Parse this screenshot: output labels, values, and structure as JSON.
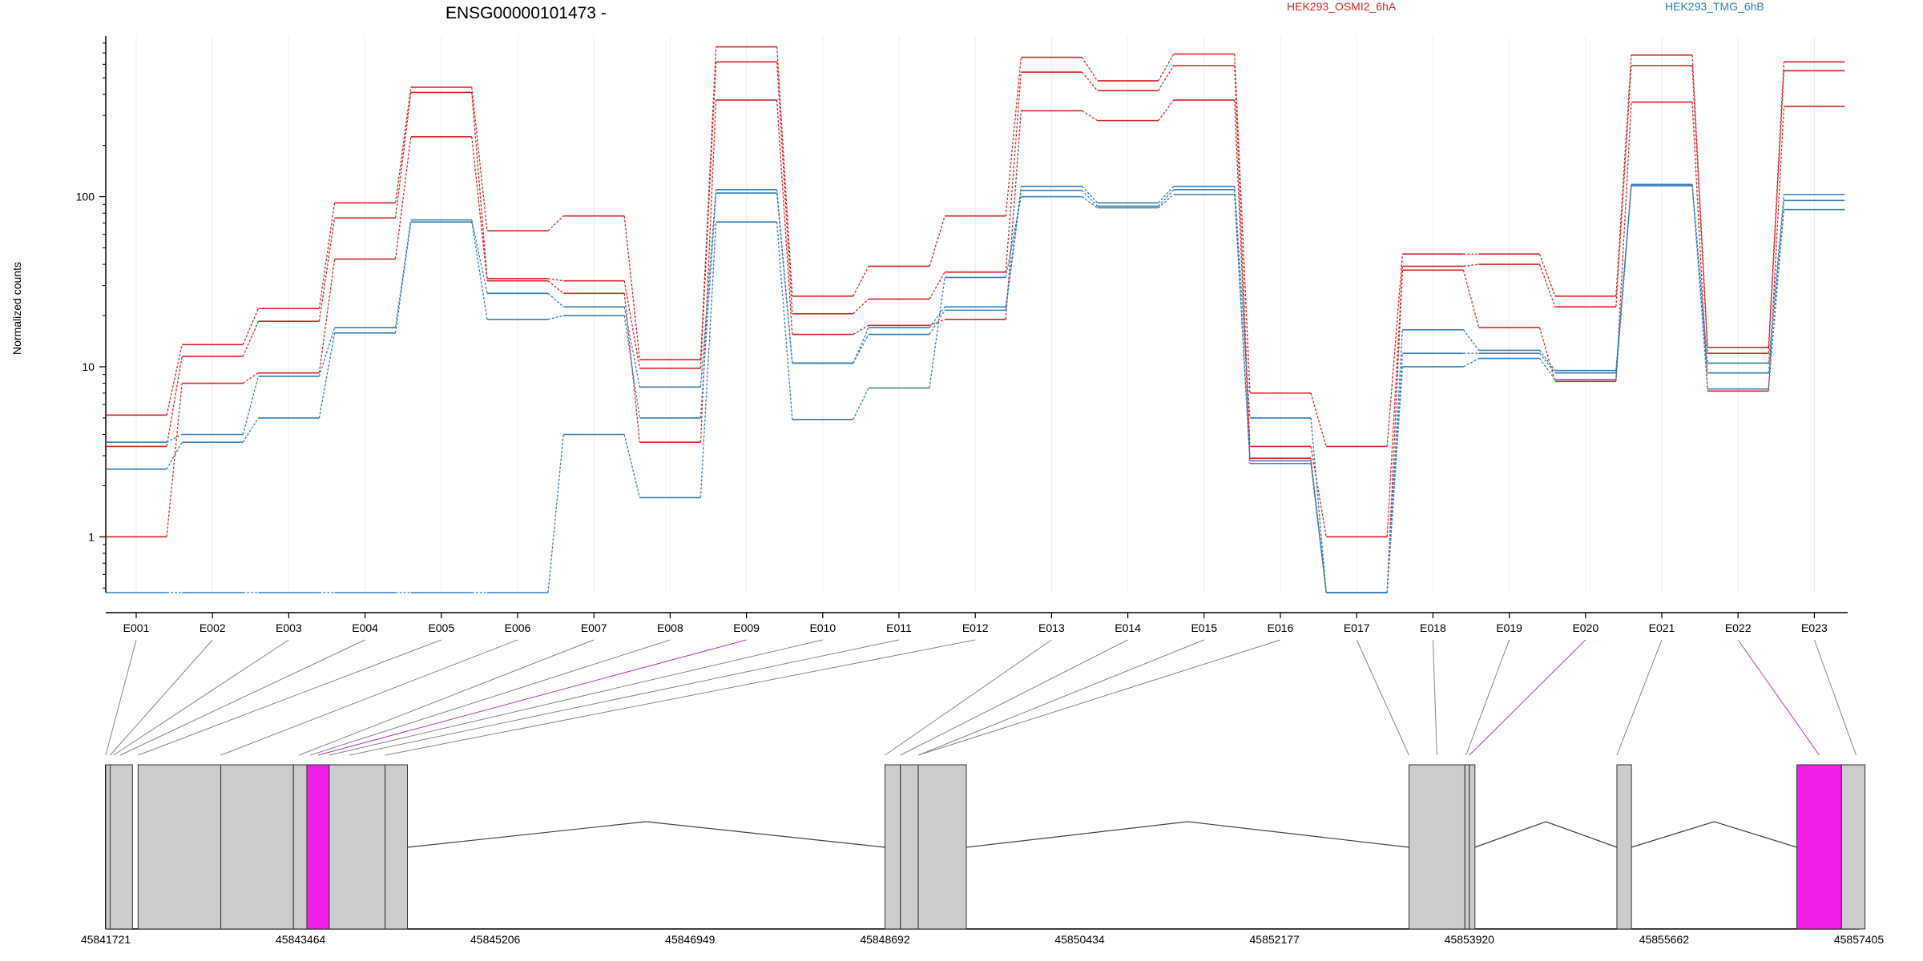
{
  "chart_data": {
    "type": "line",
    "title": "ENSG00000101473 -",
    "ylabel": "Normalized counts",
    "yscale": "log",
    "ylim": [
      0.47,
      880
    ],
    "yticks": [
      "1",
      "10",
      "100"
    ],
    "legend_placement": "top",
    "categories": [
      "E001",
      "E002",
      "E003",
      "E004",
      "E005",
      "E006",
      "E007",
      "E008",
      "E009",
      "E010",
      "E011",
      "E012",
      "E013",
      "E014",
      "E015",
      "E016",
      "E017",
      "E018",
      "E019",
      "E020",
      "E021",
      "E022",
      "E023"
    ],
    "series": [
      {
        "name": "HEK293_OSMI2_6hA",
        "color": "#d62728",
        "values": [
          5.2,
          13.5,
          22,
          92,
          440,
          63,
          77,
          11,
          760,
          26,
          39,
          77,
          660,
          480,
          690,
          7,
          3.4,
          46,
          46,
          26,
          680,
          13,
          620
        ]
      },
      {
        "name": "",
        "color": "#d62728",
        "values": [
          3.4,
          11.5,
          18.5,
          75,
          410,
          33,
          32,
          9.8,
          620,
          20.5,
          25,
          36,
          540,
          420,
          590,
          3.4,
          1,
          39,
          40,
          22.5,
          590,
          12,
          550
        ]
      },
      {
        "name": "",
        "color": "#d62728",
        "values": [
          1,
          8,
          9.2,
          43,
          225,
          32,
          27,
          3.6,
          370,
          15.5,
          17.5,
          19,
          320,
          280,
          370,
          2.9,
          0.47,
          37,
          17,
          8.2,
          360,
          7.2,
          340
        ]
      },
      {
        "name": "HEK293_TMG_6hB",
        "color": "#377eb8",
        "values": [
          3.6,
          4,
          8.8,
          17,
          73,
          27,
          22.5,
          7.6,
          110,
          10.5,
          17,
          22.5,
          115,
          92,
          115,
          5,
          0.47,
          16.5,
          12.5,
          9.5,
          118,
          10.5,
          103
        ]
      },
      {
        "name": "",
        "color": "#377eb8",
        "values": [
          2.5,
          3.6,
          5,
          15.8,
          71,
          19,
          20,
          5,
          105,
          10.5,
          15.5,
          21.5,
          109,
          88,
          110,
          2.8,
          0.47,
          12,
          12,
          9.2,
          118,
          9.2,
          95
        ]
      },
      {
        "name": "",
        "color": "#377eb8",
        "values": [
          0.47,
          0.47,
          0.47,
          0.47,
          0.47,
          0.47,
          4,
          1.7,
          71,
          4.9,
          7.5,
          33.5,
          100,
          86,
          103,
          2.7,
          0.47,
          10,
          11.2,
          8.4,
          116,
          7.4,
          84
        ]
      }
    ],
    "coordinates": {
      "ticks": [
        "45841721",
        "45843464",
        "45845206",
        "45846949",
        "45848692",
        "45850434",
        "45852177",
        "45853920",
        "45855662",
        "45857405"
      ],
      "range": [
        45841721,
        45857405
      ],
      "exons": [
        [
          45841721,
          45841760,
          "gray"
        ],
        [
          45841760,
          45841960,
          "gray"
        ],
        [
          45842010,
          45842750,
          "gray"
        ],
        [
          45842750,
          45843400,
          "gray"
        ],
        [
          45843400,
          45843520,
          "gray"
        ],
        [
          45843520,
          45843720,
          "magenta"
        ],
        [
          45843720,
          45844220,
          "gray"
        ],
        [
          45844220,
          45844420,
          "gray"
        ],
        [
          45848692,
          45848830,
          "gray"
        ],
        [
          45848830,
          45848990,
          "gray"
        ],
        [
          45848990,
          45849420,
          "gray"
        ],
        [
          45853380,
          45853880,
          "gray"
        ],
        [
          45853880,
          45853920,
          "gray"
        ],
        [
          45853920,
          45853970,
          "gray"
        ],
        [
          45855240,
          45855370,
          "gray"
        ],
        [
          45856850,
          45857250,
          "magenta"
        ],
        [
          45857250,
          45857460,
          "gray"
        ]
      ],
      "introns": [
        [
          45844420,
          45848692
        ],
        [
          45849420,
          45853380
        ],
        [
          45853970,
          45855240
        ],
        [
          45855370,
          45856850
        ]
      ],
      "exon_to_bin": [
        [
          45841721,
          "E001"
        ],
        [
          45841760,
          "E002"
        ],
        [
          45841790,
          "E003"
        ],
        [
          45841850,
          "E004"
        ],
        [
          45842010,
          "E005"
        ],
        [
          45842750,
          "E006"
        ],
        [
          45843450,
          "E007"
        ],
        [
          45843550,
          "E008"
        ],
        [
          45843620,
          "E009",
          "magenta"
        ],
        [
          45843720,
          "E010"
        ],
        [
          45843900,
          "E011"
        ],
        [
          45844220,
          "E012"
        ],
        [
          45848692,
          "E013"
        ],
        [
          45848830,
          "E014"
        ],
        [
          45848990,
          "E015"
        ],
        [
          45848990,
          "E016"
        ],
        [
          45853380,
          "E017"
        ],
        [
          45853630,
          "E018"
        ],
        [
          45853890,
          "E019"
        ],
        [
          45853920,
          "E020",
          "magenta"
        ],
        [
          45855240,
          "E021"
        ],
        [
          45857050,
          "E022",
          "magenta"
        ],
        [
          45857380,
          "E023"
        ]
      ]
    }
  }
}
